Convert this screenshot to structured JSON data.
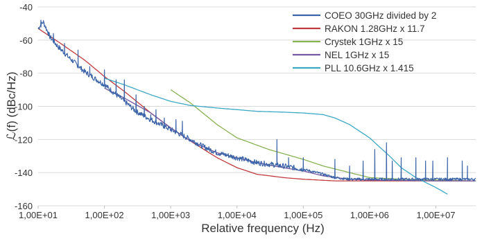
{
  "chart_data": {
    "type": "line",
    "title": "",
    "xlabel": "Relative frequency (Hz)",
    "ylabel": "ℒ(f) (dBc/Hz)",
    "x_scale": "log",
    "xlim": [
      10,
      40000000
    ],
    "ylim": [
      -160,
      -40
    ],
    "y_ticks": [
      -160,
      -140,
      -120,
      -100,
      -80,
      -60,
      -40
    ],
    "x_ticks": [
      10,
      100,
      1000,
      10000,
      100000,
      1000000,
      10000000
    ],
    "x_tick_labels": [
      "1,00E+01",
      "1,00E+02",
      "1,00E+03",
      "1,00E+04",
      "1,00E+05",
      "1,00E+06",
      "1,00E+07"
    ],
    "grid": "horizontal",
    "legend_position": "top-right",
    "series": [
      {
        "name": "COEO 30GHz divided by 2",
        "color": "#3a63a8",
        "points": [
          [
            10,
            -53
          ],
          [
            12,
            -49
          ],
          [
            15,
            -58
          ],
          [
            20,
            -64
          ],
          [
            30,
            -71
          ],
          [
            50,
            -79
          ],
          [
            100,
            -87
          ],
          [
            200,
            -97
          ],
          [
            300,
            -103
          ],
          [
            500,
            -108
          ],
          [
            1000,
            -114
          ],
          [
            2000,
            -120
          ],
          [
            3000,
            -124
          ],
          [
            5000,
            -128
          ],
          [
            10000,
            -131
          ],
          [
            20000,
            -134
          ],
          [
            50000,
            -136
          ],
          [
            100000,
            -138
          ],
          [
            200000,
            -141
          ],
          [
            300000,
            -143
          ],
          [
            500000,
            -144
          ],
          [
            1000000,
            -144
          ],
          [
            2000000,
            -144
          ],
          [
            5000000,
            -144
          ],
          [
            10000000,
            -144
          ],
          [
            40000000,
            -144
          ]
        ],
        "spikes": [
          [
            11,
            -48
          ],
          [
            12,
            -49
          ],
          [
            14,
            -55
          ],
          [
            17,
            -56
          ],
          [
            25,
            -62
          ],
          [
            40,
            -66
          ],
          [
            60,
            -76
          ],
          [
            100,
            -78
          ],
          [
            150,
            -84
          ],
          [
            200,
            -84
          ],
          [
            300,
            -93
          ],
          [
            400,
            -100
          ],
          [
            500,
            -105
          ],
          [
            600,
            -102
          ],
          [
            800,
            -107
          ],
          [
            1200,
            -108
          ],
          [
            1500,
            -109
          ],
          [
            40000,
            -120
          ],
          [
            60000,
            -131
          ],
          [
            100000,
            -131
          ],
          [
            300000,
            -132
          ],
          [
            500000,
            -136
          ],
          [
            800000,
            -133
          ],
          [
            1200000,
            -126
          ],
          [
            1800000,
            -122
          ],
          [
            2200000,
            -133
          ],
          [
            3000000,
            -131
          ],
          [
            5000000,
            -131
          ],
          [
            7000000,
            -133
          ],
          [
            9000000,
            -133
          ],
          [
            15000000,
            -131
          ],
          [
            25000000,
            -133
          ],
          [
            30000000,
            -136
          ]
        ]
      },
      {
        "name": "RAKON 1.28GHz x 11.7",
        "color": "#c0393b",
        "points": [
          [
            10,
            -53
          ],
          [
            20,
            -61
          ],
          [
            50,
            -72
          ],
          [
            100,
            -82
          ],
          [
            200,
            -91
          ],
          [
            500,
            -104
          ],
          [
            1000,
            -113
          ],
          [
            2000,
            -121
          ],
          [
            5000,
            -131
          ],
          [
            10000,
            -137
          ],
          [
            20000,
            -141
          ],
          [
            50000,
            -143
          ],
          [
            100000,
            -144
          ],
          [
            300000,
            -145
          ],
          [
            1000000,
            -145
          ],
          [
            10000000,
            -145
          ],
          [
            40000000,
            -145
          ]
        ]
      },
      {
        "name": "Crystek 1GHz x 15",
        "color": "#86b14f",
        "points": [
          [
            1000,
            -90
          ],
          [
            2000,
            -98
          ],
          [
            5000,
            -111
          ],
          [
            10000,
            -119
          ],
          [
            30000,
            -126
          ],
          [
            100000,
            -132
          ],
          [
            200000,
            -136
          ],
          [
            500000,
            -140
          ],
          [
            1000000,
            -143
          ],
          [
            3000000,
            -144
          ],
          [
            10000000,
            -144.5
          ],
          [
            40000000,
            -145
          ]
        ]
      },
      {
        "name": "NEL 1GHz x 15",
        "color": "#7458a3",
        "points": [
          [
            100,
            -89
          ],
          [
            200,
            -95
          ],
          [
            500,
            -104
          ],
          [
            1000,
            -113
          ],
          [
            2000,
            -121
          ],
          [
            5000,
            -128
          ],
          [
            10000,
            -131
          ],
          [
            20000,
            -134
          ],
          [
            50000,
            -137
          ],
          [
            100000,
            -139
          ],
          [
            200000,
            -142
          ],
          [
            500000,
            -144
          ],
          [
            1000000,
            -144.5
          ],
          [
            10000000,
            -145
          ],
          [
            40000000,
            -145
          ]
        ]
      },
      {
        "name": "PLL 10.6GHz x 1.415",
        "color": "#3aa8c5",
        "points": [
          [
            100,
            -83
          ],
          [
            200,
            -87
          ],
          [
            500,
            -93
          ],
          [
            1000,
            -97
          ],
          [
            2000,
            -99.5
          ],
          [
            5000,
            -101
          ],
          [
            10000,
            -102
          ],
          [
            20000,
            -103
          ],
          [
            50000,
            -103.5
          ],
          [
            100000,
            -104
          ],
          [
            200000,
            -105
          ],
          [
            300000,
            -107
          ],
          [
            500000,
            -111
          ],
          [
            1000000,
            -119
          ],
          [
            2000000,
            -130
          ],
          [
            3000000,
            -137
          ],
          [
            5000000,
            -143
          ],
          [
            10000000,
            -149
          ],
          [
            15000000,
            -153
          ]
        ]
      }
    ]
  }
}
